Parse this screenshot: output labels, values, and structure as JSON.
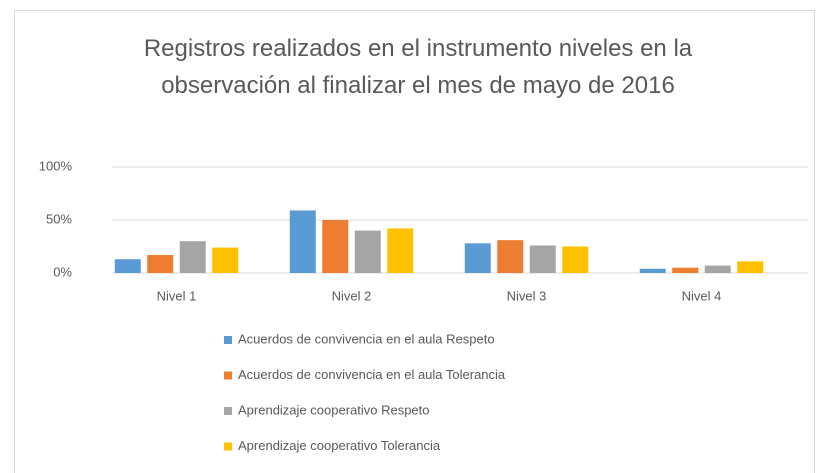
{
  "chart_data": {
    "type": "bar",
    "title": "Registros realizados en el instrumento niveles en la observación al finalizar el mes de mayo de 2016",
    "categories": [
      "Nivel 1",
      "Nivel 2",
      "Nivel 3",
      "Nivel 4"
    ],
    "series": [
      {
        "name": "Acuerdos de convivencia en el aula Respeto",
        "color": "#5b9bd5",
        "values": [
          13,
          59,
          28,
          4
        ]
      },
      {
        "name": "Acuerdos de convivencia en el aula Tolerancia",
        "color": "#ed7d31",
        "values": [
          17,
          50,
          31,
          5
        ]
      },
      {
        "name": "Aprendizaje cooperativo Respeto",
        "color": "#a5a5a5",
        "values": [
          30,
          40,
          26,
          7
        ]
      },
      {
        "name": "Aprendizaje cooperativo Tolerancia",
        "color": "#ffc000",
        "values": [
          24,
          42,
          25,
          11
        ]
      }
    ],
    "ylim": [
      0,
      100
    ],
    "yticks": [
      {
        "value": 0,
        "label": "0%"
      },
      {
        "value": 50,
        "label": "50%"
      },
      {
        "value": 100,
        "label": "100%"
      }
    ],
    "grid": true
  }
}
